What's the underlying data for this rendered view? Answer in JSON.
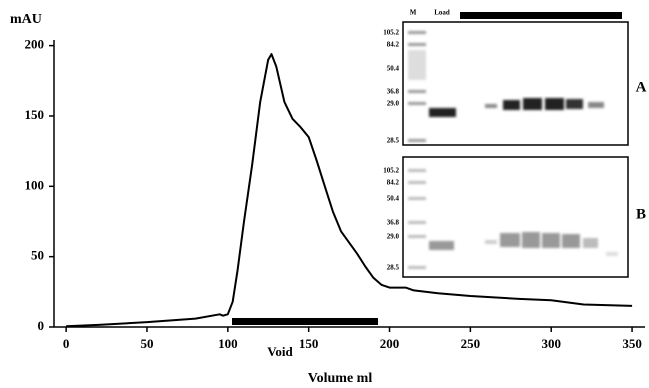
{
  "chart_data": {
    "type": "line",
    "y_label": "mAU",
    "x_label": "Volume ml",
    "annotation": "Void",
    "x": [
      0,
      20,
      50,
      80,
      95,
      97,
      100,
      103,
      106,
      110,
      115,
      120,
      125,
      127,
      130,
      135,
      140,
      145,
      150,
      155,
      160,
      165,
      170,
      175,
      180,
      185,
      190,
      195,
      200,
      210,
      215,
      230,
      250,
      280,
      300,
      320,
      350
    ],
    "values": [
      0.5,
      1.5,
      3.5,
      6,
      9,
      8,
      9,
      18,
      40,
      75,
      115,
      160,
      190,
      194,
      185,
      160,
      148,
      142,
      135,
      118,
      100,
      82,
      68,
      60,
      52,
      43,
      35,
      30,
      28,
      28,
      26,
      24,
      22,
      20,
      19,
      16,
      15
    ],
    "color": "#000000",
    "xlim": [
      -7.5,
      358
    ],
    "xticks": [
      0,
      50,
      100,
      150,
      200,
      250,
      300,
      350
    ],
    "ylim": [
      0,
      204
    ],
    "yticks": [
      0,
      50,
      100,
      150,
      200
    ],
    "gel_insets": {
      "lane_labels": [
        "M",
        "Load"
      ],
      "panels": [
        {
          "label": "A",
          "markers": [
            "105.2",
            "84.2",
            "50.4",
            "36.8",
            "29.0",
            "28.5"
          ]
        },
        {
          "label": "B",
          "markers": [
            "105.2",
            "84.2",
            "50.4",
            "36.8",
            "29.0",
            "28.5"
          ]
        }
      ]
    }
  }
}
